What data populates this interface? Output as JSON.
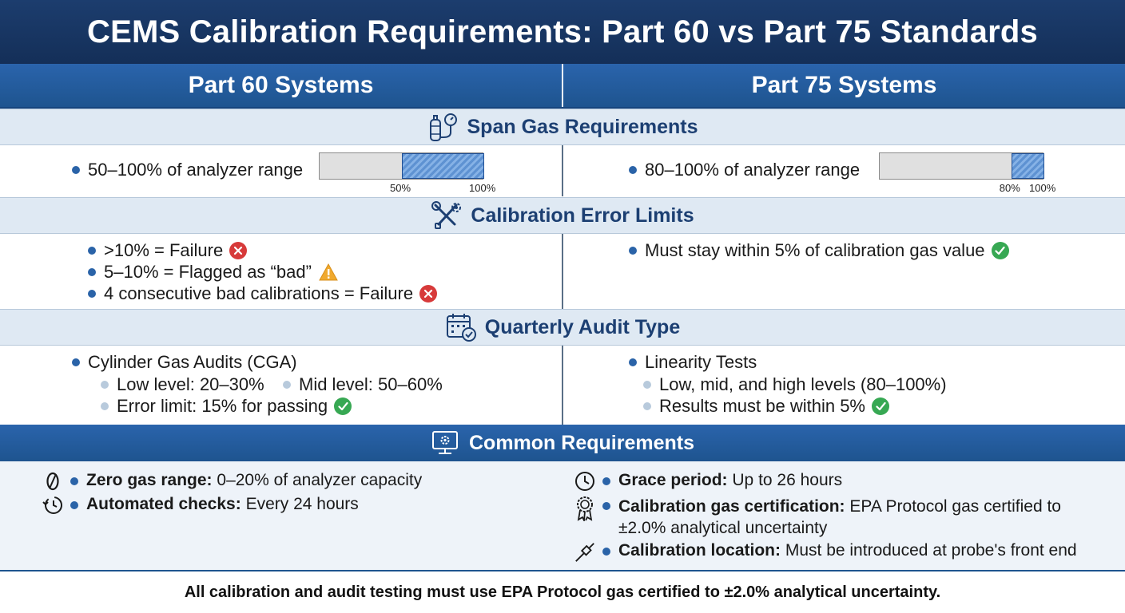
{
  "title": "CEMS Calibration Requirements: Part 60 vs Part 75 Standards",
  "columns": {
    "left": "Part 60 Systems",
    "right": "Part 75 Systems"
  },
  "span_gas": {
    "heading": "Span Gas Requirements",
    "left": {
      "text": "50–100% of analyzer range",
      "range_start_pct": 50,
      "range_end_pct": 100,
      "label_start": "50%",
      "label_end": "100%"
    },
    "right": {
      "text": "80–100% of analyzer range",
      "range_start_pct": 80,
      "range_end_pct": 100,
      "label_start": "80%",
      "label_end": "100%"
    }
  },
  "calibration_error": {
    "heading": "Calibration Error Limits",
    "left": [
      {
        "text": ">10% = Failure",
        "status": "fail"
      },
      {
        "text": "5–10% = Flagged as “bad”",
        "status": "warning"
      },
      {
        "text": "4 consecutive bad calibrations = Failure",
        "status": "fail"
      }
    ],
    "right": [
      {
        "text": "Must stay within 5% of calibration gas value",
        "status": "pass"
      }
    ]
  },
  "quarterly_audit": {
    "heading": "Quarterly Audit Type",
    "left": {
      "main": "Cylinder Gas Audits (CGA)",
      "sub1": "Low level: 20–30%",
      "sub2": "Mid level: 50–60%",
      "sub3": "Error limit: 15% for passing"
    },
    "right": {
      "main": "Linearity Tests",
      "sub1": "Low, mid, and high levels (80–100%)",
      "sub2": "Results must be within 5%"
    }
  },
  "common": {
    "heading": "Common Requirements",
    "zero_gas": {
      "label": "Zero gas range:",
      "value": "0–20% of analyzer capacity"
    },
    "automated": {
      "label": "Automated checks:",
      "value": "Every 24 hours"
    },
    "grace": {
      "label": "Grace period:",
      "value": "Up to 26 hours"
    },
    "certification": {
      "label": "Calibration gas certification:",
      "value_line1": "EPA Protocol gas certified to",
      "value_line2": "±2.0% analytical uncertainty"
    },
    "location": {
      "label": "Calibration location:",
      "value": "Must be introduced at probe's front end"
    }
  },
  "footer": "All calibration and audit testing must use EPA Protocol gas certified to ±2.0% analytical uncertainty.",
  "colors": {
    "navy": "#1c3d6e",
    "blue": "#2a64ac",
    "band": "#dfe9f3",
    "fail": "#d73a3a",
    "pass": "#37a853",
    "warning": "#f0a92e"
  }
}
